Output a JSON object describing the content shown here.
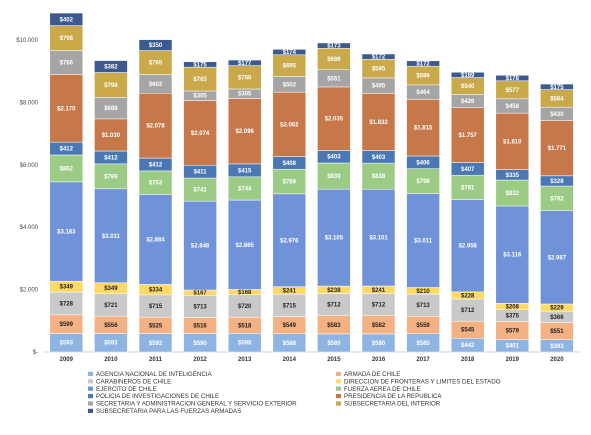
{
  "chart_data": {
    "type": "bar",
    "stacked": true,
    "title": "",
    "xlabel": "",
    "ylabel": "",
    "categories": [
      "2009",
      "2010",
      "2011",
      "2012",
      "2013",
      "2014",
      "2015",
      "2016",
      "2017",
      "2018",
      "2019",
      "2020"
    ],
    "ylim": [
      0,
      10800
    ],
    "yticks": [
      0,
      2000,
      4000,
      6000,
      8000,
      10000
    ],
    "ytick_labels": [
      "$-",
      "$2.000",
      "$4.000",
      "$6.000",
      "$8.000",
      "$10.000"
    ],
    "grid": false,
    "legend_position": "bottom",
    "series": [
      {
        "name": "AGENCIA NACIONAL DE INTELIGENCIA",
        "color": "#8eb4e3",
        "values": [
          593,
          593,
          592,
          590,
          598,
          588,
          580,
          580,
          585,
          442,
          401,
          393
        ],
        "labels": [
          "$593",
          "$593",
          "$592",
          "$590",
          "$598",
          "$588",
          "$580",
          "$580",
          "$585",
          "$442",
          "$401",
          "$393"
        ]
      },
      {
        "name": "ARMADA DE CHILE",
        "color": "#f4b183",
        "values": [
          599,
          556,
          525,
          516,
          518,
          549,
          583,
          582,
          559,
          545,
          579,
          551
        ],
        "labels": [
          "$599",
          "$556",
          "$525",
          "$516",
          "$518",
          "$549",
          "$583",
          "$582",
          "$559",
          "$545",
          "$579",
          "$551"
        ]
      },
      {
        "name": "CARABINEROS DE CHILE",
        "color": "#c9c9c9",
        "values": [
          728,
          721,
          715,
          713,
          720,
          715,
          712,
          712,
          713,
          712,
          375,
          366
        ],
        "labels": [
          "$728",
          "$721",
          "$715",
          "$713",
          "$720",
          "$715",
          "$712",
          "$712",
          "$713",
          "$712",
          "$375",
          "$366"
        ]
      },
      {
        "name": "DIRECCION DE FRONTERAS Y LIMITES DEL ESTADO",
        "color": "#ffd966",
        "values": [
          349,
          349,
          334,
          167,
          168,
          241,
          238,
          241,
          210,
          228,
          208,
          229
        ],
        "labels": [
          "$349",
          "$349",
          "$334",
          "$167",
          "$168",
          "$241",
          "$238",
          "$241",
          "$210",
          "$228",
          "$208",
          "$229"
        ]
      },
      {
        "name": "EJERCITO DE CHILE",
        "color": "#7092d8",
        "values": [
          3183,
          3011,
          2884,
          2848,
          2865,
          2976,
          3105,
          3101,
          3011,
          2958,
          3116,
          2987
        ],
        "labels": [
          "$3.183",
          "$3.011",
          "$2.884",
          "$2.848",
          "$2.865",
          "$2.976",
          "$3.105",
          "$3.101",
          "$3.011",
          "$2.958",
          "$3.116",
          "$2.987"
        ]
      },
      {
        "name": "FUERZA AEREA DE CHILE",
        "color": "#9ccb86",
        "values": [
          862,
          799,
          753,
          741,
          744,
          789,
          839,
          838,
          798,
          781,
          832,
          792
        ],
        "labels": [
          "$862",
          "$799",
          "$753",
          "$741",
          "$744",
          "$789",
          "$839",
          "$838",
          "$798",
          "$781",
          "$832",
          "$792"
        ]
      },
      {
        "name": "POLICIA DE INVESTIGACIONES DE CHILE",
        "color": "#4a78b5",
        "values": [
          412,
          412,
          412,
          411,
          415,
          408,
          403,
          403,
          406,
          407,
          335,
          328
        ],
        "labels": [
          "$412",
          "$412",
          "$412",
          "$411",
          "$415",
          "$408",
          "$403",
          "$403",
          "$406",
          "$407",
          "$335",
          "$328"
        ]
      },
      {
        "name": "PRESIDENCIA DE LA REPUBLICA",
        "color": "#c7784a",
        "values": [
          2170,
          1030,
          2078,
          2074,
          2096,
          2062,
          2035,
          1832,
          1815,
          1757,
          1810,
          1771
        ],
        "labels": [
          "$2.170",
          "$1.030",
          "$2.078",
          "$2.074",
          "$2.096",
          "$2.062",
          "$2.035",
          "$1.832",
          "$1.815",
          "$1.757",
          "$1.810",
          "$1.771"
        ]
      },
      {
        "name": "SECRETARIA Y ADMINISTRACION GENERAL Y SERVICIO EXTERIOR",
        "color": "#a5a5a5",
        "values": [
          766,
          688,
          602,
          305,
          305,
          502,
          551,
          495,
          464,
          426,
          458,
          430
        ],
        "labels": [
          "$766",
          "$688",
          "$602",
          "$305",
          "$305",
          "$502",
          "$551",
          "$495",
          "$464",
          "$426",
          "$458",
          "$430"
        ]
      },
      {
        "name": "SUBSECRETARIA DEL INTERIOR",
        "color": "#c9a94a",
        "values": [
          798,
          798,
          765,
          763,
          750,
          695,
          686,
          595,
          599,
          540,
          577,
          564
        ],
        "labels": [
          "$798",
          "$798",
          "$765",
          "$763",
          "$750",
          "$695",
          "$686",
          "$595",
          "$599",
          "$540",
          "$577",
          "$564"
        ]
      },
      {
        "name": "SUBSECRETARIA PARA LAS FUERZAS ARMADAS",
        "color": "#3d5a8e",
        "values": [
          402,
          382,
          350,
          175,
          177,
          174,
          173,
          172,
          172,
          169,
          178,
          175
        ],
        "labels": [
          "$402",
          "$382",
          "$350",
          "$175",
          "$177",
          "$174",
          "$173",
          "$172",
          "$172",
          "$169",
          "$178",
          "$175"
        ]
      }
    ]
  }
}
